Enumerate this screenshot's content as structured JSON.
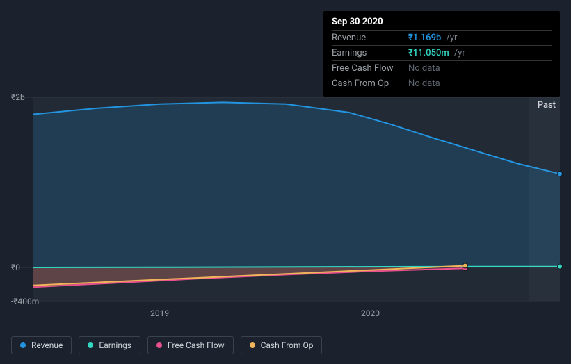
{
  "tooltip": {
    "date": "Sep 30 2020",
    "rows": [
      {
        "label": "Revenue",
        "value": "₹1.169b",
        "unit": "/yr",
        "color": "#2394df"
      },
      {
        "label": "Earnings",
        "value": "₹11.050m",
        "unit": "/yr",
        "color": "#32d7c3"
      },
      {
        "label": "Free Cash Flow",
        "value": "No data",
        "nodata": true
      },
      {
        "label": "Cash From Op",
        "value": "No data",
        "nodata": true
      }
    ]
  },
  "chart": {
    "type": "area-line",
    "background": "#1b222d",
    "plot_background": "#222a36",
    "grid_color": "#2f3742",
    "text_color": "#9aa0a6",
    "past_label": "Past",
    "y_axis": {
      "labels": [
        {
          "text": "₹2b",
          "value": 2000
        },
        {
          "text": "₹0",
          "value": 0
        },
        {
          "text": "-₹400m",
          "value": -400
        }
      ],
      "min": -400,
      "max": 2000
    },
    "x_axis": {
      "min": 2018.4,
      "max": 2020.9,
      "ticks": [
        {
          "text": "2019",
          "value": 2019
        },
        {
          "text": "2020",
          "value": 2020
        }
      ]
    },
    "hover_x": 2020.75,
    "series": [
      {
        "name": "Revenue",
        "color": "#2394df",
        "fill": "rgba(35,148,223,0.18)",
        "width": 2,
        "data": [
          [
            2018.4,
            1800
          ],
          [
            2018.7,
            1870
          ],
          [
            2019.0,
            1920
          ],
          [
            2019.3,
            1940
          ],
          [
            2019.6,
            1920
          ],
          [
            2019.9,
            1820
          ],
          [
            2020.1,
            1680
          ],
          [
            2020.3,
            1520
          ],
          [
            2020.5,
            1370
          ],
          [
            2020.7,
            1220
          ],
          [
            2020.9,
            1100
          ]
        ]
      },
      {
        "name": "Earnings",
        "color": "#32d7c3",
        "fill": "rgba(50,215,195,0.12)",
        "width": 2,
        "data": [
          [
            2018.4,
            0
          ],
          [
            2019.0,
            2
          ],
          [
            2019.5,
            5
          ],
          [
            2020.0,
            8
          ],
          [
            2020.5,
            10
          ],
          [
            2020.9,
            11
          ]
        ]
      },
      {
        "name": "Free Cash Flow",
        "color": "#e8518d",
        "fill": "rgba(232,81,141,0.18)",
        "width": 2,
        "end_x": 2020.45,
        "data": [
          [
            2018.4,
            -230
          ],
          [
            2018.8,
            -180
          ],
          [
            2019.2,
            -130
          ],
          [
            2019.6,
            -85
          ],
          [
            2020.0,
            -45
          ],
          [
            2020.45,
            -10
          ]
        ]
      },
      {
        "name": "Cash From Op",
        "color": "#f0b45a",
        "fill": "rgba(240,180,90,0.15)",
        "width": 2,
        "end_x": 2020.45,
        "data": [
          [
            2018.4,
            -210
          ],
          [
            2018.8,
            -165
          ],
          [
            2019.2,
            -120
          ],
          [
            2019.6,
            -75
          ],
          [
            2020.0,
            -30
          ],
          [
            2020.45,
            20
          ]
        ]
      }
    ]
  },
  "legend": [
    {
      "label": "Revenue",
      "color": "#2394df"
    },
    {
      "label": "Earnings",
      "color": "#32d7c3"
    },
    {
      "label": "Free Cash Flow",
      "color": "#e8518d"
    },
    {
      "label": "Cash From Op",
      "color": "#f0b45a"
    }
  ]
}
